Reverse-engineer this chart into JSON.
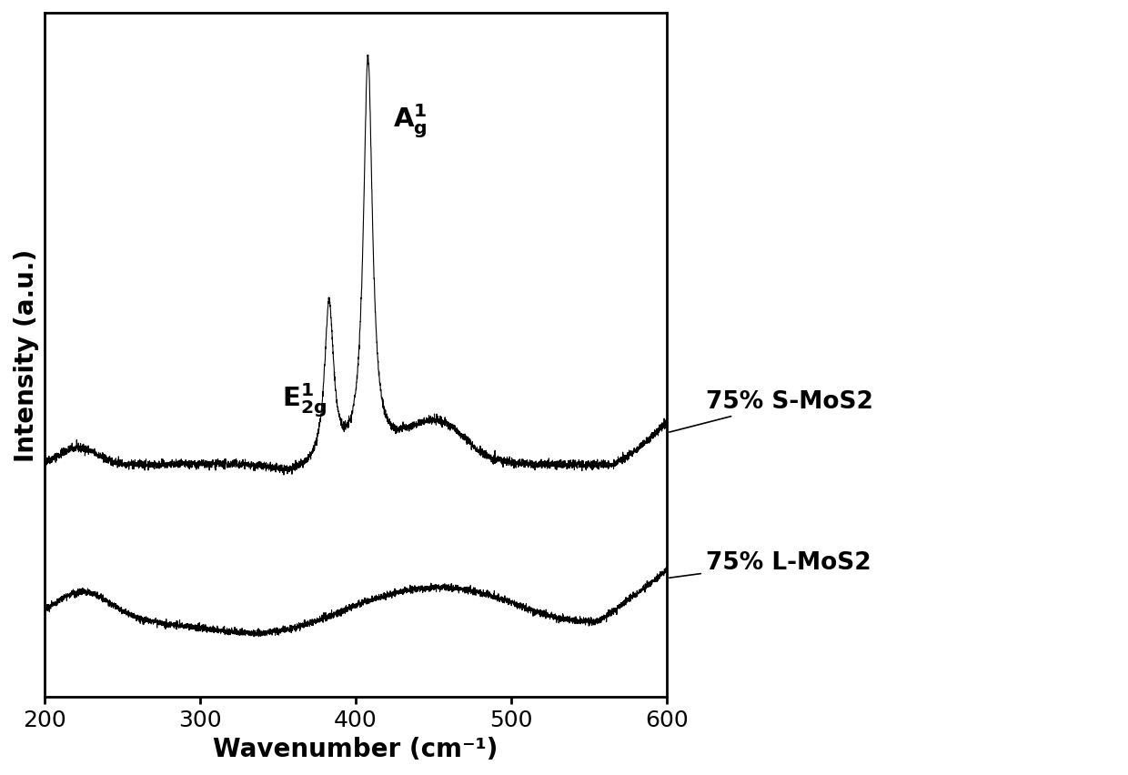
{
  "xlabel": "Wavenumber (cm⁻¹)",
  "ylabel": "Intensity (a.u.)",
  "xmin": 200,
  "xmax": 600,
  "label_S": "75% S-MoS2",
  "label_L": "75% L-MoS2",
  "line_color": "#000000",
  "bg_color": "#ffffff",
  "label_fontsize": 20,
  "tick_fontsize": 18,
  "annot_fontsize": 20
}
